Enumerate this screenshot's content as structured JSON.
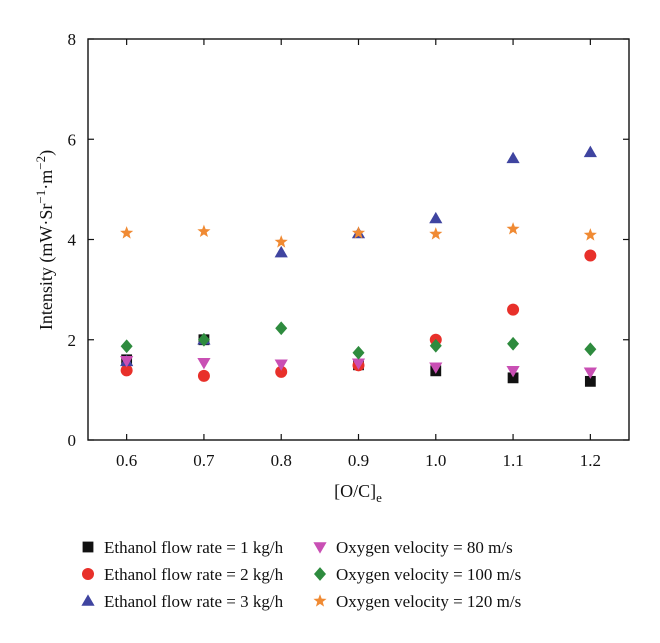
{
  "chart_data": {
    "type": "scatter",
    "x": [
      0.6,
      0.7,
      0.8,
      0.9,
      1.0,
      1.1,
      1.2
    ],
    "xlim": [
      0.55,
      1.25
    ],
    "ylim": [
      0,
      8
    ],
    "xticks": [
      "0.6",
      "0.7",
      "0.8",
      "0.9",
      "1.0",
      "1.1",
      "1.2"
    ],
    "yticks": [
      "0",
      "2",
      "4",
      "6",
      "8"
    ],
    "xlabel": {
      "main": "[O/C]",
      "sub": "e"
    },
    "ylabel": {
      "p1": "Intensity (mW·Sr",
      "s1": "−1",
      "p2": "·m",
      "s2": "−2",
      "p3": ")"
    },
    "grid": false,
    "legend_position": "bottom",
    "series": [
      {
        "name": "Ethanol flow rate = 1 kg/h",
        "marker": "square",
        "color": "#111111",
        "values": [
          1.6,
          2.0,
          null,
          1.5,
          1.38,
          1.24,
          1.17
        ]
      },
      {
        "name": "Ethanol flow rate = 2 kg/h",
        "marker": "circle",
        "color": "#e8302a",
        "values": [
          1.39,
          1.28,
          1.36,
          1.49,
          2.0,
          2.6,
          3.68
        ]
      },
      {
        "name": "Ethanol flow rate = 3 kg/h",
        "marker": "triangle-up",
        "color": "#3f44a0",
        "values": [
          1.57,
          2.0,
          3.74,
          4.12,
          4.42,
          5.62,
          5.74
        ]
      },
      {
        "name": "Oxygen velocity = 80 m/s",
        "marker": "triangle-down",
        "color": "#c94fb4",
        "values": [
          1.58,
          1.54,
          1.51,
          1.53,
          1.45,
          1.38,
          1.35
        ]
      },
      {
        "name": "Oxygen velocity = 100 m/s",
        "marker": "diamond",
        "color": "#2e8b3e",
        "values": [
          1.87,
          2.0,
          2.23,
          1.74,
          1.88,
          1.92,
          1.81
        ]
      },
      {
        "name": "Oxygen velocity = 120 m/s",
        "marker": "star",
        "color": "#f08a33",
        "values": [
          4.13,
          4.16,
          3.95,
          4.13,
          4.11,
          4.21,
          4.09
        ]
      }
    ]
  }
}
